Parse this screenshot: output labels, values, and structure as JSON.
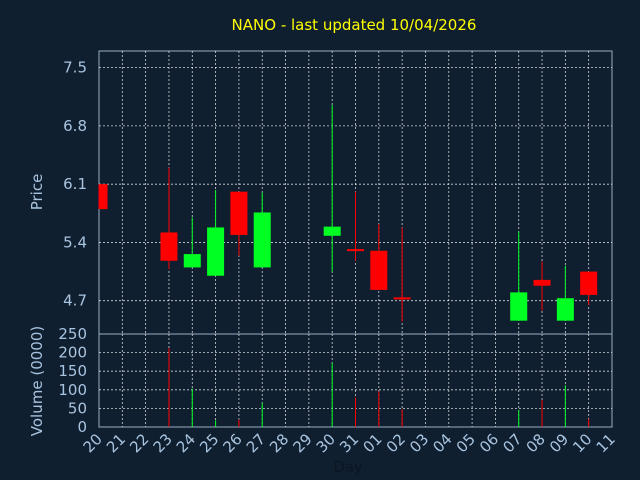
{
  "chart_data": {
    "type": "candlestick",
    "title": "NANO - last updated 10/04/2026",
    "xlabel": "Day",
    "price_panel": {
      "ylabel": "Price",
      "yticks": [
        "7.5",
        "6.8",
        "6.1",
        "5.4",
        "4.7"
      ],
      "ylim": [
        4.3,
        7.7
      ],
      "grid": true
    },
    "volume_panel": {
      "ylabel": "Volume (0000)",
      "yticks": [
        "250",
        "200",
        "150",
        "100",
        "50",
        "0"
      ],
      "ylim": [
        0,
        250
      ],
      "grid": true
    },
    "x_ticks": [
      "20",
      "21",
      "22",
      "23",
      "24",
      "25",
      "26",
      "27",
      "28",
      "29",
      "30",
      "31",
      "01",
      "02",
      "03",
      "04",
      "05",
      "06",
      "07",
      "08",
      "09",
      "10",
      "11"
    ],
    "candles": [
      {
        "day": "20",
        "open": 6.1,
        "high": 6.1,
        "low": 5.8,
        "close": 5.8,
        "volume": 0
      },
      {
        "day": "23",
        "open": 5.52,
        "high": 6.3,
        "low": 5.08,
        "close": 5.18,
        "volume": 212
      },
      {
        "day": "24",
        "open": 5.1,
        "high": 5.7,
        "low": 5.1,
        "close": 5.26,
        "volume": 103
      },
      {
        "day": "25",
        "open": 5.0,
        "high": 6.03,
        "low": 5.0,
        "close": 5.58,
        "volume": 18
      },
      {
        "day": "26",
        "open": 6.01,
        "high": 6.01,
        "low": 5.24,
        "close": 5.49,
        "volume": 20
      },
      {
        "day": "27",
        "open": 5.1,
        "high": 6.0,
        "low": 5.1,
        "close": 5.76,
        "volume": 65
      },
      {
        "day": "30",
        "open": 5.48,
        "high": 7.05,
        "low": 5.05,
        "close": 5.59,
        "volume": 172
      },
      {
        "day": "31",
        "open": 5.32,
        "high": 6.01,
        "low": 5.18,
        "close": 5.3,
        "volume": 79
      },
      {
        "day": "01",
        "open": 5.3,
        "high": 5.62,
        "low": 4.83,
        "close": 4.83,
        "volume": 96
      },
      {
        "day": "02",
        "open": 4.74,
        "high": 5.58,
        "low": 4.45,
        "close": 4.72,
        "volume": 48
      },
      {
        "day": "07",
        "open": 4.46,
        "high": 5.53,
        "low": 4.46,
        "close": 4.8,
        "volume": 46
      },
      {
        "day": "08",
        "open": 4.95,
        "high": 5.17,
        "low": 4.58,
        "close": 4.88,
        "volume": 73
      },
      {
        "day": "09",
        "open": 4.46,
        "high": 5.12,
        "low": 4.46,
        "close": 4.73,
        "volume": 112
      },
      {
        "day": "10",
        "open": 5.05,
        "high": 5.05,
        "low": 4.65,
        "close": 4.77,
        "volume": 22
      }
    ],
    "colors": {
      "up": "#00ff22",
      "down": "#ff0000",
      "background": "#0f1f30",
      "plot_frame": "#9aaec2",
      "grid": "#ffffff",
      "tick_text": "#a9c4df",
      "title": "#ffff00"
    }
  }
}
